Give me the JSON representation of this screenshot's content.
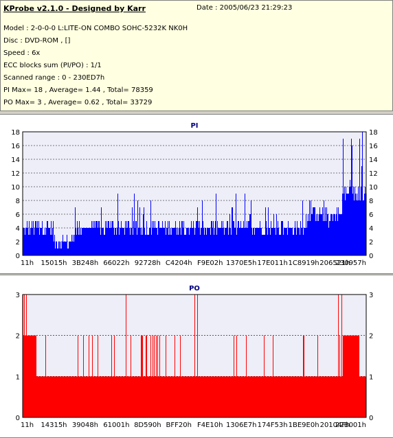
{
  "info": {
    "title": "KProbe v2.1.0 - Designed by Karr",
    "date": "Date : 2005/06/23 21:29:23",
    "lines": [
      "Model : 2-0-0-0 L:LITE-ON COMBO SOHC-5232K NK0H",
      "Disc : DVD-ROM ,  []",
      "Speed : 6x",
      "ECC blocks sum (PI/PO) : 1/1",
      "Scanned range : 0 - 230ED7h",
      "PI Max= 18 , Average= 1.44 , Total= 78359",
      "PO Max= 3 , Average= 0.62 , Total= 33729"
    ]
  },
  "colors": {
    "pi": "#0000ff",
    "po": "#ff0000",
    "plot_bg": "#eeeef8",
    "pi_title": "#000080",
    "po_title": "#000080"
  },
  "chart_data": [
    {
      "type": "bar",
      "title": "PI",
      "ylim": [
        0,
        18
      ],
      "yticks": [
        0,
        2,
        4,
        6,
        8,
        10,
        12,
        14,
        16,
        18
      ],
      "xticks": [
        "11h",
        "15015h",
        "3B248h",
        "66022h",
        "92728h",
        "C4204h",
        "F9E02h",
        "1370E5h",
        "17E011h",
        "1C8919h",
        "206521h",
        "230957h"
      ],
      "grid": true,
      "segments": [
        {
          "x_start": 0.0,
          "x_end": 0.09,
          "typical": 4,
          "low": 3,
          "high": 7
        },
        {
          "x_start": 0.09,
          "x_end": 0.15,
          "typical": 2,
          "low": 1,
          "high": 3
        },
        {
          "x_start": 0.15,
          "x_end": 0.83,
          "typical": 4,
          "low": 3,
          "high": 9
        },
        {
          "x_start": 0.83,
          "x_end": 0.93,
          "typical": 6,
          "low": 4,
          "high": 9
        },
        {
          "x_start": 0.93,
          "x_end": 1.0,
          "typical": 9,
          "low": 7,
          "high": 18
        }
      ],
      "max": 18,
      "average": 1.44
    },
    {
      "type": "bar",
      "title": "PO",
      "ylim": [
        0,
        3
      ],
      "yticks": [
        0,
        1,
        2,
        3
      ],
      "xticks": [
        "11h",
        "14315h",
        "39048h",
        "61001h",
        "8D590h",
        "BFF20h",
        "F4E10h",
        "1306E7h",
        "174F53h",
        "1BE9E0h",
        "20104Fh",
        "22B001h"
      ],
      "grid": true,
      "baseline": 1,
      "spikes_to_2_fraction": 0.06,
      "spikes_to_3_positions": [
        0.0,
        0.005,
        0.01,
        0.3,
        0.5,
        0.51,
        0.92,
        0.93
      ],
      "max": 3,
      "average": 0.62
    }
  ]
}
